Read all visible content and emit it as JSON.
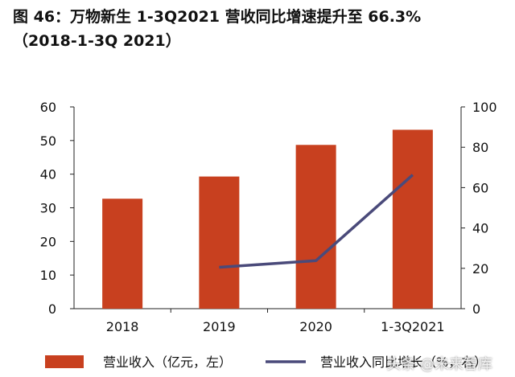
{
  "title_line1": "图 46：万物新生 1-3Q2021 营收同比增速提升至 66.3%",
  "title_line2": "（2018-1-3Q 2021）",
  "watermark": "头条 @未来智库",
  "colors": {
    "bar": "#C8401F",
    "line": "#4A4A7A",
    "axis": "#222222"
  },
  "chart_data": {
    "type": "bar",
    "title": "万物新生 1-3Q2021 营收同比增速提升至 66.3%",
    "categories": [
      "2018",
      "2019",
      "2020",
      "1-3Q2021"
    ],
    "series": [
      {
        "name": "营业收入（亿元，左）",
        "type": "bar",
        "axis": "left",
        "values": [
          32.7,
          39.3,
          48.7,
          53.2
        ]
      },
      {
        "name": "营业收入同比增长（%，右）",
        "type": "line",
        "axis": "right",
        "values": [
          null,
          20.5,
          23.8,
          66.3
        ]
      }
    ],
    "ylim_left": [
      0,
      60
    ],
    "yticks_left": [
      0,
      10,
      20,
      30,
      40,
      50,
      60
    ],
    "ylim_right": [
      0,
      100
    ],
    "yticks_right": [
      0,
      20,
      40,
      60,
      80,
      100
    ],
    "legend": "bottom",
    "grid": false
  }
}
